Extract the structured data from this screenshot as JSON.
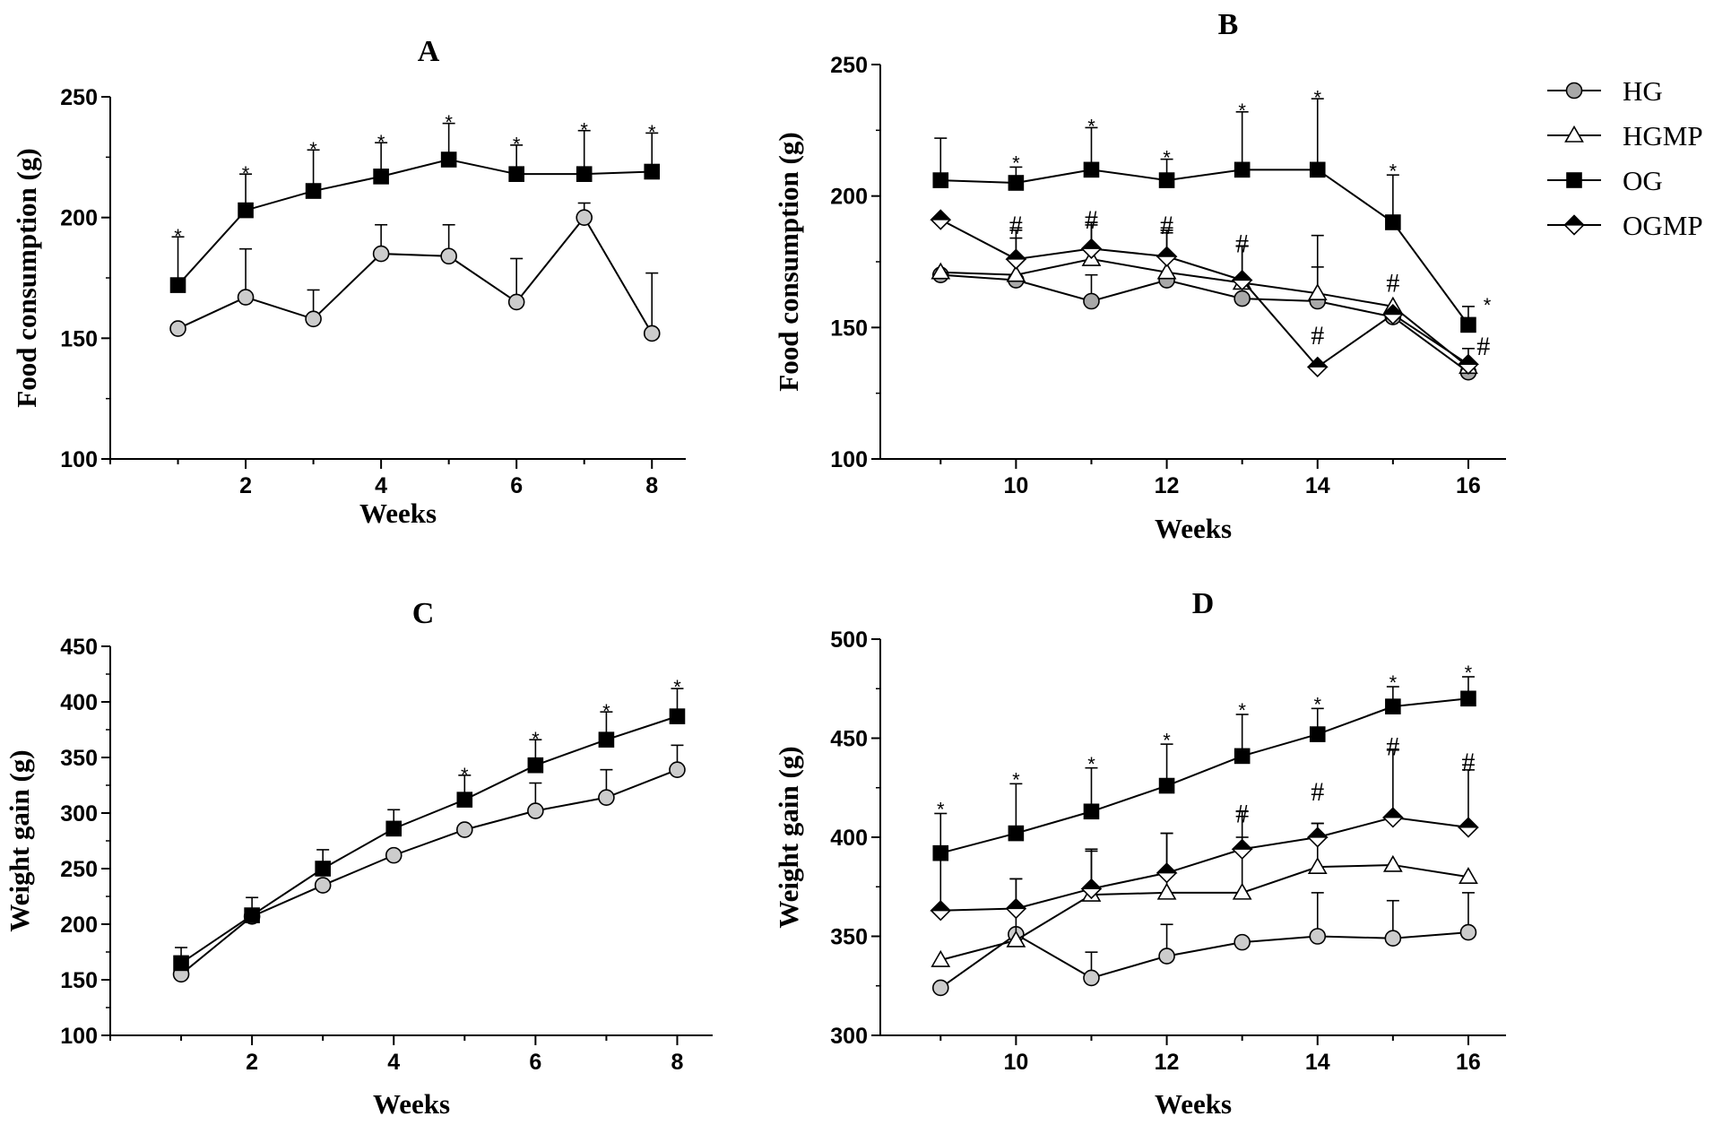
{
  "legend": [
    {
      "name": "HG",
      "marker": "circle",
      "fill": "#a8a8a8"
    },
    {
      "name": "HGMP",
      "marker": "triangle",
      "fill": "#ffffff"
    },
    {
      "name": "OG",
      "marker": "square",
      "fill": "#000000"
    },
    {
      "name": "OGMP",
      "marker": "diamond",
      "fill": "#000000"
    }
  ],
  "chart_data": [
    {
      "id": "A",
      "type": "line",
      "title": "A",
      "xlabel": "Weeks",
      "ylabel": "Food consumption (g)",
      "xlim": [
        0,
        8.5
      ],
      "ylim": [
        100,
        250
      ],
      "xticks": [
        2,
        4,
        6,
        8
      ],
      "yticks": [
        100,
        150,
        200,
        250
      ],
      "x": [
        1,
        2,
        3,
        4,
        5,
        6,
        7,
        8
      ],
      "series": [
        {
          "name": "HG",
          "marker": "circle",
          "fill": "#cccccc",
          "values": [
            154,
            167,
            158,
            185,
            184,
            165,
            200,
            152
          ],
          "err": [
            0,
            20,
            12,
            12,
            13,
            18,
            6,
            25
          ]
        },
        {
          "name": "OG",
          "marker": "square",
          "fill": "#000000",
          "values": [
            172,
            203,
            211,
            217,
            224,
            218,
            218,
            219
          ],
          "err": [
            20,
            15,
            17,
            14,
            15,
            12,
            18,
            16
          ]
        }
      ],
      "annotations": [
        {
          "x": 1,
          "y": 194,
          "text": "*"
        },
        {
          "x": 2,
          "y": 220,
          "text": "*"
        },
        {
          "x": 3,
          "y": 230,
          "text": "*"
        },
        {
          "x": 4,
          "y": 233,
          "text": "*"
        },
        {
          "x": 5,
          "y": 241,
          "text": "*"
        },
        {
          "x": 6,
          "y": 232,
          "text": "*"
        },
        {
          "x": 7,
          "y": 238,
          "text": "*"
        },
        {
          "x": 8,
          "y": 237,
          "text": "*"
        }
      ]
    },
    {
      "id": "B",
      "type": "line",
      "title": "B",
      "xlabel": "Weeks",
      "ylabel": "Food consumption (g)",
      "xlim": [
        8.2,
        16.5
      ],
      "ylim": [
        100,
        250
      ],
      "xticks": [
        10,
        12,
        14,
        16
      ],
      "yticks": [
        100,
        150,
        200,
        250
      ],
      "x": [
        9,
        10,
        11,
        12,
        13,
        14,
        15,
        16
      ],
      "series": [
        {
          "name": "HG",
          "marker": "circle",
          "fill": "#a8a8a8",
          "values": [
            170,
            168,
            160,
            168,
            161,
            160,
            154,
            133
          ],
          "err": [
            0,
            0,
            10,
            0,
            0,
            13,
            0,
            0
          ]
        },
        {
          "name": "HGMP",
          "marker": "triangle",
          "fill": "#ffffff",
          "values": [
            171,
            170,
            176,
            171,
            167,
            163,
            158,
            135
          ],
          "err": [
            0,
            14,
            14,
            16,
            14,
            22,
            0,
            0
          ]
        },
        {
          "name": "OG",
          "marker": "square",
          "fill": "#000000",
          "values": [
            206,
            205,
            210,
            206,
            210,
            210,
            190,
            151
          ],
          "err": [
            16,
            6,
            16,
            8,
            22,
            27,
            18,
            7
          ]
        },
        {
          "name": "OGMP",
          "marker": "diamond",
          "fill": "#000000",
          "values": [
            191,
            176,
            180,
            177,
            168,
            135,
            155,
            136
          ],
          "err": [
            0,
            11,
            9,
            9,
            13,
            0,
            0,
            6
          ]
        }
      ],
      "annotations": [
        {
          "x": 10,
          "y": 214,
          "text": "*"
        },
        {
          "x": 11,
          "y": 228,
          "text": "*"
        },
        {
          "x": 12,
          "y": 216,
          "text": "*"
        },
        {
          "x": 13,
          "y": 234,
          "text": "*"
        },
        {
          "x": 14,
          "y": 239,
          "text": "*"
        },
        {
          "x": 15,
          "y": 211,
          "text": "*"
        },
        {
          "x": 16.25,
          "y": 160,
          "text": "*"
        },
        {
          "x": 10,
          "y": 189,
          "text": "#"
        },
        {
          "x": 11,
          "y": 191,
          "text": "#"
        },
        {
          "x": 12,
          "y": 189,
          "text": "#"
        },
        {
          "x": 13,
          "y": 182,
          "text": "#"
        },
        {
          "x": 14,
          "y": 147,
          "text": "#"
        },
        {
          "x": 15,
          "y": 167,
          "text": "#"
        },
        {
          "x": 16.2,
          "y": 143,
          "text": "#"
        }
      ]
    },
    {
      "id": "C",
      "type": "line",
      "title": "C",
      "xlabel": "Weeks",
      "ylabel": "Weight gain (g)",
      "xlim": [
        0,
        8.5
      ],
      "ylim": [
        100,
        450
      ],
      "xticks": [
        2,
        4,
        6,
        8
      ],
      "yticks": [
        100,
        150,
        200,
        250,
        300,
        350,
        400,
        450
      ],
      "x": [
        1,
        2,
        3,
        4,
        5,
        6,
        7,
        8
      ],
      "series": [
        {
          "name": "HG",
          "marker": "circle",
          "fill": "#cccccc",
          "values": [
            155,
            207,
            235,
            262,
            285,
            302,
            314,
            339
          ],
          "err": [
            0,
            0,
            0,
            0,
            0,
            25,
            25,
            22
          ]
        },
        {
          "name": "OG",
          "marker": "square",
          "fill": "#000000",
          "values": [
            165,
            208,
            250,
            286,
            312,
            343,
            366,
            387
          ],
          "err": [
            14,
            16,
            17,
            17,
            22,
            23,
            25,
            25
          ]
        }
      ],
      "annotations": [
        {
          "x": 5,
          "y": 338,
          "text": "*"
        },
        {
          "x": 6,
          "y": 370,
          "text": "*"
        },
        {
          "x": 7,
          "y": 395,
          "text": "*"
        },
        {
          "x": 8,
          "y": 417,
          "text": "*"
        }
      ]
    },
    {
      "id": "D",
      "type": "line",
      "title": "D",
      "xlabel": "Weeks",
      "ylabel": "Weight gain (g)",
      "xlim": [
        8.2,
        16.5
      ],
      "ylim": [
        300,
        500
      ],
      "xticks": [
        10,
        12,
        14,
        16
      ],
      "yticks": [
        300,
        350,
        400,
        450,
        500
      ],
      "x": [
        9,
        10,
        11,
        12,
        13,
        14,
        15,
        16
      ],
      "series": [
        {
          "name": "HG",
          "marker": "circle",
          "fill": "#cccccc",
          "values": [
            324,
            351,
            329,
            340,
            347,
            350,
            349,
            352
          ],
          "err": [
            0,
            0,
            13,
            16,
            0,
            22,
            19,
            20
          ]
        },
        {
          "name": "HGMP",
          "marker": "triangle",
          "fill": "#ffffff",
          "values": [
            338,
            348,
            371,
            372,
            372,
            385,
            386,
            380
          ],
          "err": [
            0,
            31,
            23,
            30,
            28,
            22,
            0,
            0
          ]
        },
        {
          "name": "OG",
          "marker": "square",
          "fill": "#000000",
          "values": [
            392,
            402,
            413,
            426,
            441,
            452,
            466,
            470
          ],
          "err": [
            20,
            25,
            22,
            21,
            21,
            13,
            10,
            11
          ]
        },
        {
          "name": "OGMP",
          "marker": "diamond",
          "fill": "#000000",
          "values": [
            363,
            364,
            374,
            382,
            394,
            400,
            410,
            405
          ],
          "err": [
            27,
            15,
            19,
            20,
            19,
            7,
            34,
            29
          ]
        }
      ],
      "annotations": [
        {
          "x": 9,
          "y": 416,
          "text": "*"
        },
        {
          "x": 10,
          "y": 431,
          "text": "*"
        },
        {
          "x": 11,
          "y": 439,
          "text": "*"
        },
        {
          "x": 12,
          "y": 451,
          "text": "*"
        },
        {
          "x": 13,
          "y": 466,
          "text": "*"
        },
        {
          "x": 14,
          "y": 469,
          "text": "*"
        },
        {
          "x": 15,
          "y": 480,
          "text": "*"
        },
        {
          "x": 16,
          "y": 485,
          "text": "*"
        },
        {
          "x": 13,
          "y": 412,
          "text": "#"
        },
        {
          "x": 14,
          "y": 423,
          "text": "#"
        },
        {
          "x": 15,
          "y": 446,
          "text": "#"
        },
        {
          "x": 16,
          "y": 438,
          "text": "#"
        }
      ]
    }
  ]
}
